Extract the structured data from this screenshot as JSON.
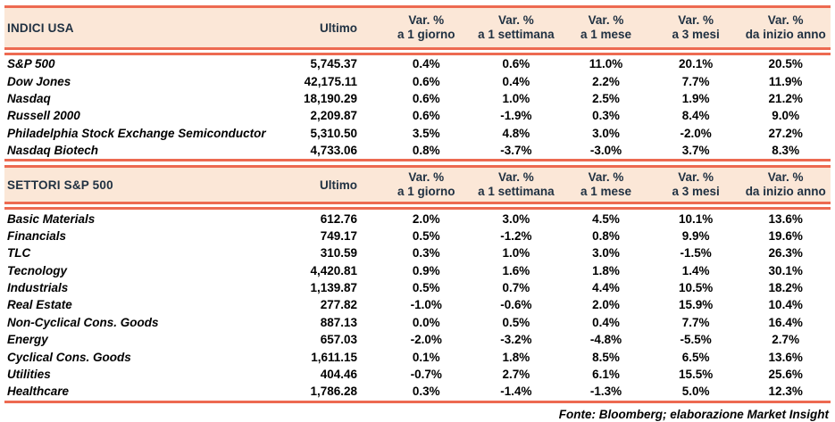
{
  "columns": {
    "ultimo_label": "Ultimo",
    "var_label": "Var. %",
    "var_subs": [
      "a 1 giorno",
      "a 1 settimana",
      "a 1 mese",
      "a 3 mesi",
      "da inizio anno"
    ]
  },
  "tables": [
    {
      "title": "INDICI USA",
      "rows": [
        {
          "name": "S&P 500",
          "ultimo": "5,745.37",
          "vars": [
            "0.4%",
            "0.6%",
            "11.0%",
            "20.1%",
            "20.5%"
          ]
        },
        {
          "name": "Dow Jones",
          "ultimo": "42,175.11",
          "vars": [
            "0.6%",
            "0.4%",
            "2.2%",
            "7.7%",
            "11.9%"
          ]
        },
        {
          "name": "Nasdaq",
          "ultimo": "18,190.29",
          "vars": [
            "0.6%",
            "1.0%",
            "2.5%",
            "1.9%",
            "21.2%"
          ]
        },
        {
          "name": "Russell 2000",
          "ultimo": "2,209.87",
          "vars": [
            "0.6%",
            "-1.9%",
            "0.3%",
            "8.4%",
            "9.0%"
          ]
        },
        {
          "name": "Philadelphia Stock Exchange Semiconductor",
          "ultimo": "5,310.50",
          "vars": [
            "3.5%",
            "4.8%",
            "3.0%",
            "-2.0%",
            "27.2%"
          ]
        },
        {
          "name": "Nasdaq Biotech",
          "ultimo": "4,733.06",
          "vars": [
            "0.8%",
            "-3.7%",
            "-3.0%",
            "3.7%",
            "8.3%"
          ]
        }
      ]
    },
    {
      "title": "SETTORI S&P 500",
      "rows": [
        {
          "name": "Basic Materials",
          "ultimo": "612.76",
          "vars": [
            "2.0%",
            "3.0%",
            "4.5%",
            "10.1%",
            "13.6%"
          ]
        },
        {
          "name": "Financials",
          "ultimo": "749.17",
          "vars": [
            "0.5%",
            "-1.2%",
            "0.8%",
            "9.9%",
            "19.6%"
          ]
        },
        {
          "name": "TLC",
          "ultimo": "310.59",
          "vars": [
            "0.3%",
            "1.0%",
            "3.0%",
            "-1.5%",
            "26.3%"
          ]
        },
        {
          "name": "Tecnology",
          "ultimo": "4,420.81",
          "vars": [
            "0.9%",
            "1.6%",
            "1.8%",
            "1.4%",
            "30.1%"
          ]
        },
        {
          "name": "Industrials",
          "ultimo": "1,139.87",
          "vars": [
            "0.5%",
            "0.7%",
            "4.4%",
            "10.5%",
            "18.2%"
          ]
        },
        {
          "name": "Real Estate",
          "ultimo": "277.82",
          "vars": [
            "-1.0%",
            "-0.6%",
            "2.0%",
            "15.9%",
            "10.4%"
          ]
        },
        {
          "name": "Non-Cyclical Cons. Goods",
          "ultimo": "887.13",
          "vars": [
            "0.0%",
            "0.5%",
            "0.4%",
            "7.7%",
            "16.4%"
          ]
        },
        {
          "name": "Energy",
          "ultimo": "657.03",
          "vars": [
            "-2.0%",
            "-3.2%",
            "-4.8%",
            "-5.5%",
            "2.7%"
          ]
        },
        {
          "name": "Cyclical Cons. Goods",
          "ultimo": "1,611.15",
          "vars": [
            "0.1%",
            "1.8%",
            "8.5%",
            "6.5%",
            "13.6%"
          ]
        },
        {
          "name": "Utilities",
          "ultimo": "404.46",
          "vars": [
            "-0.7%",
            "2.7%",
            "6.1%",
            "15.5%",
            "25.6%"
          ]
        },
        {
          "name": "Healthcare",
          "ultimo": "1,786.28",
          "vars": [
            "0.3%",
            "-1.4%",
            "-1.3%",
            "5.0%",
            "12.3%"
          ]
        }
      ]
    }
  ],
  "footer": "Fonte: Bloomberg; elaborazione Market Insight",
  "colors": {
    "accent_line": "#ed6a51",
    "header_bg": "#fbe7d7",
    "header_text": "#203142",
    "body_text": "#000000"
  }
}
